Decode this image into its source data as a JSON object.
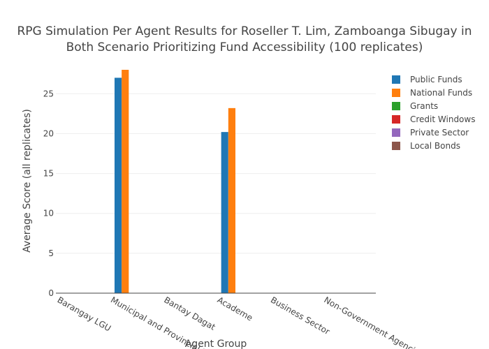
{
  "chart_data": {
    "type": "bar",
    "title_lines": [
      "RPG Simulation Per Agent Results for Roseller T. Lim, Zamboanga Sibugay in",
      "Both Scenario Prioritizing Fund Accessibility (100 replicates)"
    ],
    "xlabel": "Agent Group",
    "ylabel": "Average Score (all replicates)",
    "categories": [
      "Barangay LGU",
      "Municipal and Provincial LGU",
      "Bantay Dagat",
      "Academe",
      "Business Sector",
      "Non-Government Agencies"
    ],
    "series": [
      {
        "name": "Public Funds",
        "color": "#1f77b4",
        "values": [
          0,
          27.0,
          0,
          20.2,
          0,
          0
        ]
      },
      {
        "name": "National Funds",
        "color": "#ff7f0e",
        "values": [
          0,
          28.0,
          0,
          23.2,
          0,
          0
        ]
      },
      {
        "name": "Grants",
        "color": "#2ca02c",
        "values": [
          0,
          0,
          0,
          0,
          0,
          0
        ]
      },
      {
        "name": "Credit Windows",
        "color": "#d62728",
        "values": [
          0,
          0,
          0,
          0,
          0,
          0
        ]
      },
      {
        "name": "Private Sector",
        "color": "#9467bd",
        "values": [
          0,
          0,
          0,
          0,
          0,
          0
        ]
      },
      {
        "name": "Local Bonds",
        "color": "#8c564b",
        "values": [
          0,
          0,
          0,
          0,
          0,
          0
        ]
      }
    ],
    "ylim": [
      0,
      28
    ],
    "yticks": [
      0,
      5,
      10,
      15,
      20,
      25
    ],
    "grid": true,
    "legend_position": "right"
  }
}
